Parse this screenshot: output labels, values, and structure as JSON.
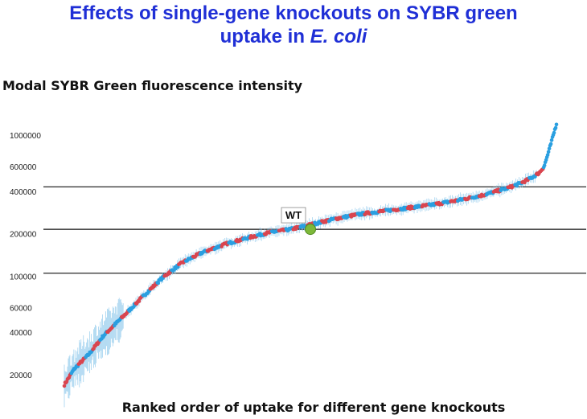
{
  "title": {
    "line1": "Effects of single-gene knockouts on SYBR green",
    "line2_prefix": "uptake in ",
    "line2_italic": "E. coli"
  },
  "chart_data": {
    "type": "scatter",
    "title": "Effects of single-gene knockouts on SYBR green uptake in E. coli",
    "ylabel": "Modal SYBR Green  fluorescence intensity",
    "xlabel": "Ranked order  of uptake  for different gene knockouts",
    "yscale": "log",
    "ylim": [
      16000,
      1300000
    ],
    "yticks": [
      20000,
      40000,
      60000,
      100000,
      200000,
      400000,
      600000,
      1000000
    ],
    "ytick_labels": [
      "20000",
      "40000",
      "60000",
      "100000",
      "200000",
      "400000",
      "600000",
      "1000000"
    ],
    "reference_lines": [
      105000,
      215000,
      430000
    ],
    "n_points": 620,
    "curve_profile": {
      "rank_fraction": [
        0,
        0.02,
        0.05,
        0.08,
        0.12,
        0.16,
        0.2,
        0.24,
        0.28,
        0.33,
        0.38,
        0.42,
        0.46,
        0.5,
        0.55,
        0.6,
        0.65,
        0.7,
        0.75,
        0.8,
        0.85,
        0.9,
        0.93,
        0.95,
        0.965,
        0.975,
        0.985,
        1.0
      ],
      "intensity": [
        17000,
        22000,
        28000,
        38000,
        52000,
        72000,
        98000,
        125000,
        147000,
        170000,
        190000,
        205000,
        215000,
        232000,
        255000,
        275000,
        290000,
        305000,
        322000,
        345000,
        375000,
        420000,
        460000,
        500000,
        540000,
        600000,
        780000,
        1200000
      ]
    },
    "series": [
      {
        "name": "",
        "color": "#d9454f"
      },
      {
        "name": "",
        "color": "#2a9fe0"
      }
    ],
    "error_bar_color": "#8cc8ec",
    "annotation": {
      "label": "WT",
      "rank_fraction": 0.5,
      "value": 215000,
      "color": "#7db83a"
    },
    "grid": false,
    "legend": "none"
  }
}
